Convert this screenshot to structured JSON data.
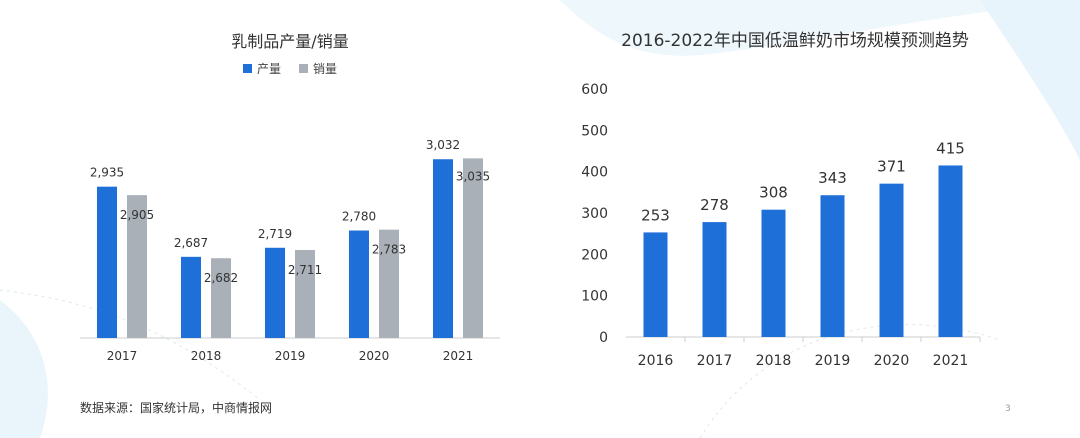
{
  "colors": {
    "production": "#1f6fd9",
    "sales": "#a9b0b8",
    "bar": "#1f6fd9",
    "axis": "#cccccc",
    "bg_accent": "#eaf5fb"
  },
  "left_chart": {
    "title": "乳制品产量/销量",
    "legend": [
      {
        "label": "产量",
        "color": "#1f6fd9"
      },
      {
        "label": "销量",
        "color": "#a9b0b8"
      }
    ]
  },
  "right_chart": {
    "title": "2016-2022年中国低温鲜奶市场规模预测趋势"
  },
  "chart_data": [
    {
      "type": "bar",
      "title": "乳制品产量/销量",
      "categories": [
        "2017",
        "2018",
        "2019",
        "2020",
        "2021"
      ],
      "series": [
        {
          "name": "产量",
          "values": [
            2935,
            2687,
            2719,
            2780,
            3032
          ],
          "labels": [
            "2,935",
            "2,687",
            "2,719",
            "2,780",
            "3,032"
          ]
        },
        {
          "name": "销量",
          "values": [
            2905,
            2682,
            2711,
            2783,
            3035
          ],
          "labels": [
            "2,905",
            "2,682",
            "2,711",
            "2,783",
            "3,035"
          ]
        }
      ],
      "legend_position": "top-center",
      "grid": false
    },
    {
      "type": "bar",
      "title": "2016-2022年中国低温鲜奶市场规模预测趋势",
      "categories": [
        "2016",
        "2017",
        "2018",
        "2019",
        "2020",
        "2021"
      ],
      "values": [
        253,
        278,
        308,
        343,
        371,
        415
      ],
      "labels": [
        "253",
        "278",
        "308",
        "343",
        "371",
        "415"
      ],
      "yticks": [
        "0",
        "100",
        "200",
        "300",
        "400",
        "500",
        "600"
      ],
      "ylim": [
        0,
        600
      ],
      "grid": false
    }
  ],
  "footer": {
    "source": "数据来源：国家统计局，中商情报网",
    "page_number": "3"
  }
}
